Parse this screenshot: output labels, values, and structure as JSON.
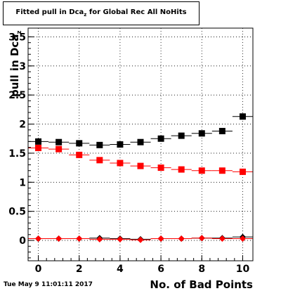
{
  "chart_data": {
    "type": "scatter",
    "title": {
      "prefix": "Fitted pull in Dca",
      "sub": "z",
      "suffix": " for Global Rec All NoHits"
    },
    "xlabel": "No. of Bad Points",
    "ylabel": {
      "main": "pull in Dca",
      "sub": "z"
    },
    "xlim": [
      -0.5,
      10.5
    ],
    "ylim": [
      -0.35,
      3.65
    ],
    "x_ticks": [
      0,
      2,
      4,
      6,
      8,
      10
    ],
    "y_ticks": [
      0,
      0.5,
      1,
      1.5,
      2,
      2.5,
      3,
      3.5
    ],
    "grid": true,
    "series": [
      {
        "marker": "square",
        "color": "#000000",
        "x": [
          0,
          1,
          2,
          3,
          4,
          5,
          6,
          7,
          8,
          9,
          10
        ],
        "y": [
          1.7,
          1.69,
          1.67,
          1.64,
          1.65,
          1.69,
          1.75,
          1.8,
          1.84,
          1.88,
          2.13
        ]
      },
      {
        "marker": "square",
        "color": "#ff0000",
        "x": [
          0,
          1,
          2,
          3,
          4,
          5,
          6,
          7,
          8,
          9,
          10
        ],
        "y": [
          1.59,
          1.57,
          1.47,
          1.38,
          1.33,
          1.28,
          1.25,
          1.22,
          1.2,
          1.2,
          1.18
        ]
      },
      {
        "marker": "diamond",
        "color": "#000000",
        "x": [
          0,
          1,
          2,
          3,
          4,
          5,
          6,
          7,
          8,
          9,
          10
        ],
        "y": [
          0.03,
          0.03,
          0.03,
          0.04,
          0.03,
          0.02,
          0.03,
          0.03,
          0.04,
          0.04,
          0.06
        ]
      },
      {
        "marker": "diamond",
        "color": "#ff0000",
        "x": [
          0,
          1,
          2,
          3,
          4,
          5,
          6,
          7,
          8,
          9,
          10
        ],
        "y": [
          0.03,
          0.03,
          0.03,
          0.02,
          0.02,
          0.01,
          0.03,
          0.03,
          0.04,
          0.03,
          0.03
        ]
      }
    ]
  },
  "footer": {
    "timestamp": "Tue May  9 11:01:11 2017"
  }
}
